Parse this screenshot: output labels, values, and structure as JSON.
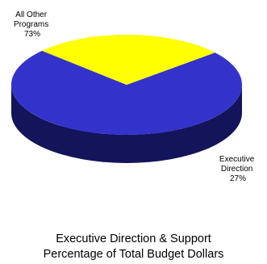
{
  "chart_data": {
    "type": "pie",
    "style": "3d",
    "slices": [
      {
        "name": "All Other Programs",
        "label_lines": [
          "All Other",
          "Programs"
        ],
        "value": 73,
        "value_label": "73%",
        "color": "#3333cc",
        "side_color": "#14145a"
      },
      {
        "name": "Executive Direction",
        "label_lines": [
          "Executive",
          "Direction"
        ],
        "value": 27,
        "value_label": "27%",
        "color": "#ffff00",
        "side_color": "#6e6e00"
      }
    ],
    "title_lines": [
      "Executive Direction & Support",
      "Percentage of Total Budget Dollars"
    ],
    "legend": "none"
  }
}
